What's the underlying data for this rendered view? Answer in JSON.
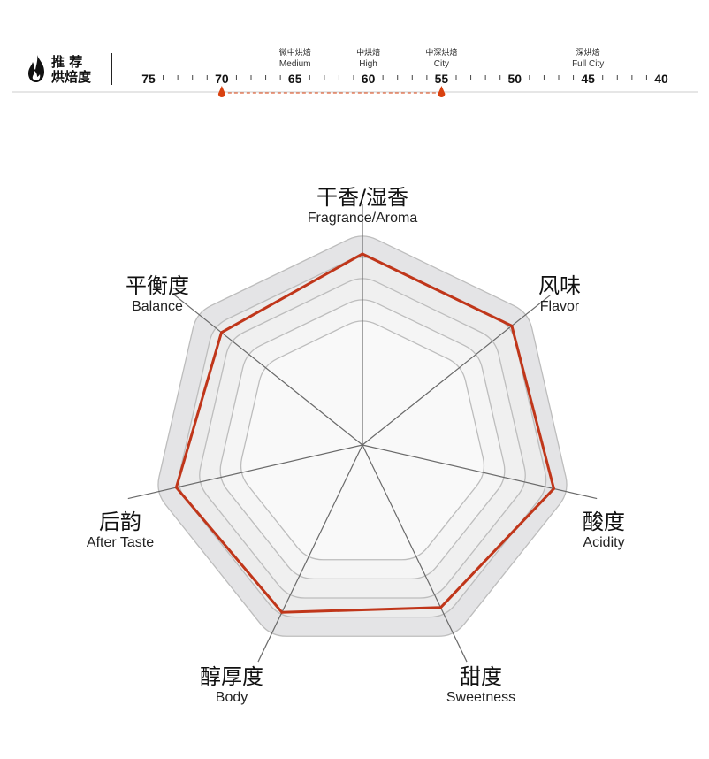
{
  "roast": {
    "title_line1": "推 荐",
    "title_line2": "烘焙度",
    "icon": "flame-icon",
    "scale_ticks": [
      75,
      70,
      65,
      60,
      55,
      50,
      45,
      40
    ],
    "levels": [
      {
        "at": 65,
        "cn": "微中烘焙",
        "en": "Medium"
      },
      {
        "at": 60,
        "cn": "中烘焙",
        "en": "High"
      },
      {
        "at": 55,
        "cn": "中深烘焙",
        "en": "City"
      },
      {
        "at": 45,
        "cn": "深烘焙",
        "en": "Full City"
      }
    ],
    "recommended_range": [
      70,
      55
    ],
    "accent": "#d9410f"
  },
  "chart_data": {
    "type": "radar",
    "axes": [
      {
        "cn": "干香/湿香",
        "en": "Fragrance/Aroma"
      },
      {
        "cn": "风味",
        "en": "Flavor"
      },
      {
        "cn": "酸度",
        "en": "Acidity"
      },
      {
        "cn": "甜度",
        "en": "Sweetness"
      },
      {
        "cn": "醇厚度",
        "en": "Body"
      },
      {
        "cn": "后韵",
        "en": "After Taste"
      },
      {
        "cn": "平衡度",
        "en": "Balance"
      }
    ],
    "values": [
      9,
      9,
      9.25,
      8.5,
      8.75,
      9,
      8.5
    ],
    "rings": [
      6,
      7,
      8,
      9,
      10
    ],
    "range": [
      0,
      10
    ],
    "series_color": "#c0361a"
  }
}
